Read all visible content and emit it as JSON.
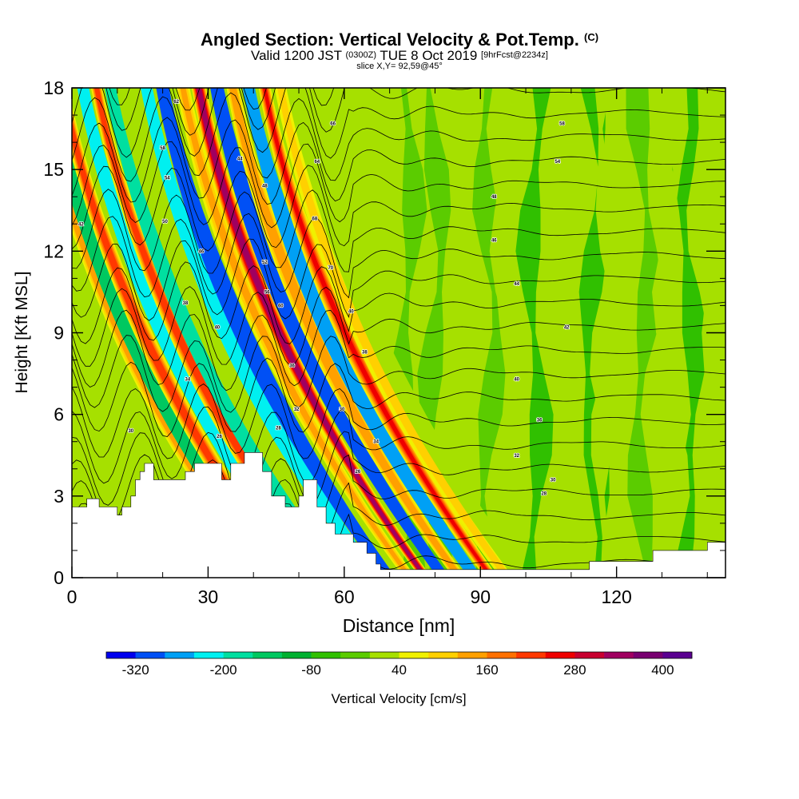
{
  "chart_data": {
    "type": "heatmap",
    "title": "Angled Section: Vertical Velocity & Pot.Temp.",
    "title_unit": "(C)",
    "subtitle": {
      "valid_prefix": "Valid 1200 JST",
      "utc": "(0300Z)",
      "date": "TUE 8 Oct 2019",
      "forecast": "[9hrFcst@2234z]"
    },
    "slice_label": "slice X,Y= 92,59@45°",
    "xlabel": "Distance [nm]",
    "ylabel": "Height [Kft MSL]",
    "xlim": [
      0,
      144
    ],
    "ylim": [
      0,
      18
    ],
    "x_ticks": [
      "0",
      "30",
      "60",
      "90",
      "120"
    ],
    "y_ticks": [
      "0",
      "3",
      "6",
      "9",
      "12",
      "15",
      "18"
    ],
    "colorbar": {
      "label": "Vertical Velocity [cm/s]",
      "tick_labels": [
        "-320",
        "-200",
        "-80",
        "40",
        "160",
        "280",
        "400"
      ],
      "min": -360,
      "max": 440,
      "step": 40,
      "colors": [
        "#0000ee",
        "#0050f5",
        "#00a0f5",
        "#00f0f0",
        "#00dfa0",
        "#00c860",
        "#00b030",
        "#30c000",
        "#5bcc00",
        "#a6e000",
        "#f0f000",
        "#ffd000",
        "#ffa000",
        "#ff7000",
        "#ff3800",
        "#ee0000",
        "#c80030",
        "#a00060",
        "#780070",
        "#5a0090"
      ]
    },
    "velocity_bands": [
      {
        "x": 8,
        "h": 6,
        "v": 130
      },
      {
        "x": 10,
        "h": 6,
        "v": -140
      },
      {
        "x": 13,
        "h": 7,
        "v": 210
      },
      {
        "x": 17.5,
        "h": 7,
        "v": -220
      },
      {
        "x": 20.5,
        "h": 6,
        "v": 230
      },
      {
        "x": 23.5,
        "h": 6,
        "v": -200
      },
      {
        "x": 27,
        "h": 6,
        "v": 30
      },
      {
        "x": 31.5,
        "h": 7,
        "v": -230
      },
      {
        "x": 35,
        "h": 9,
        "v": -290
      },
      {
        "x": 39.5,
        "h": 10,
        "v": 120
      },
      {
        "x": 43,
        "h": 11,
        "v": 330
      },
      {
        "x": 47,
        "h": 10,
        "v": -300
      },
      {
        "x": 50.5,
        "h": 9,
        "v": 150
      },
      {
        "x": 54,
        "h": 8,
        "v": -260
      },
      {
        "x": 57.5,
        "h": 8,
        "v": 240
      },
      {
        "x": 61,
        "h": 7,
        "v": 80
      },
      {
        "x": 64,
        "h": 6,
        "v": 10
      }
    ],
    "terrain_kft": [
      [
        0,
        2.6
      ],
      [
        3.3,
        2.6
      ],
      [
        3.3,
        2.9
      ],
      [
        6,
        2.9
      ],
      [
        6,
        2.6
      ],
      [
        10,
        2.6
      ],
      [
        10,
        2.3
      ],
      [
        11,
        2.3
      ],
      [
        11,
        2.6
      ],
      [
        13,
        2.6
      ],
      [
        13,
        3.0
      ],
      [
        14,
        3.0
      ],
      [
        14,
        3.6
      ],
      [
        15,
        3.6
      ],
      [
        15,
        3.9
      ],
      [
        16,
        3.9
      ],
      [
        16,
        4.2
      ],
      [
        18,
        4.2
      ],
      [
        18,
        3.6
      ],
      [
        25,
        3.6
      ],
      [
        25,
        3.9
      ],
      [
        27,
        3.9
      ],
      [
        27,
        4.2
      ],
      [
        33,
        4.2
      ],
      [
        33,
        3.6
      ],
      [
        35,
        3.6
      ],
      [
        35,
        4.2
      ],
      [
        38,
        4.2
      ],
      [
        38,
        4.6
      ],
      [
        42,
        4.6
      ],
      [
        42,
        3.9
      ],
      [
        44,
        3.9
      ],
      [
        44,
        3.0
      ],
      [
        47,
        3.0
      ],
      [
        47,
        2.6
      ],
      [
        50,
        2.6
      ],
      [
        50,
        3.0
      ],
      [
        51,
        3.0
      ],
      [
        51,
        3.6
      ],
      [
        54,
        3.6
      ],
      [
        54,
        2.6
      ],
      [
        56,
        2.6
      ],
      [
        56,
        2.0
      ],
      [
        58,
        2.0
      ],
      [
        58,
        1.6
      ],
      [
        62,
        1.6
      ],
      [
        62,
        1.3
      ],
      [
        65,
        1.3
      ],
      [
        65,
        0.9
      ],
      [
        67,
        0.9
      ],
      [
        67,
        0.5
      ],
      [
        68,
        0.5
      ],
      [
        68,
        0.3
      ],
      [
        114,
        0.3
      ],
      [
        114,
        0.6
      ],
      [
        128,
        0.6
      ],
      [
        128,
        1.0
      ],
      [
        140,
        1.0
      ],
      [
        140,
        1.3
      ],
      [
        144,
        1.3
      ]
    ],
    "theta_contours": {
      "top_kft": 18.8,
      "spacing_kft": 0.87,
      "count": 29,
      "labels": [
        {
          "x": 2,
          "h": 13.0,
          "text": "42"
        },
        {
          "x": 13,
          "h": 5.4,
          "text": "30"
        },
        {
          "x": 20,
          "h": 15.8,
          "text": "58"
        },
        {
          "x": 21,
          "h": 14.7,
          "text": "54"
        },
        {
          "x": 20.5,
          "h": 13.1,
          "text": "50"
        },
        {
          "x": 23,
          "h": 17.5,
          "text": "62"
        },
        {
          "x": 25.5,
          "h": 7.3,
          "text": "34"
        },
        {
          "x": 28.5,
          "h": 12.0,
          "text": "46"
        },
        {
          "x": 25,
          "h": 10.1,
          "text": "38"
        },
        {
          "x": 32,
          "h": 9.2,
          "text": "40"
        },
        {
          "x": 32.5,
          "h": 5.2,
          "text": "26"
        },
        {
          "x": 37,
          "h": 15.4,
          "text": "44"
        },
        {
          "x": 42.5,
          "h": 14.4,
          "text": "48"
        },
        {
          "x": 42.5,
          "h": 11.6,
          "text": "52"
        },
        {
          "x": 43,
          "h": 10.5,
          "text": "56"
        },
        {
          "x": 46,
          "h": 10.0,
          "text": "60"
        },
        {
          "x": 48.5,
          "h": 7.8,
          "text": "36"
        },
        {
          "x": 49.5,
          "h": 6.2,
          "text": "32"
        },
        {
          "x": 45.5,
          "h": 5.5,
          "text": "28"
        },
        {
          "x": 54,
          "h": 15.3,
          "text": "64"
        },
        {
          "x": 53.5,
          "h": 13.2,
          "text": "68"
        },
        {
          "x": 57,
          "h": 11.4,
          "text": "70"
        },
        {
          "x": 57.5,
          "h": 16.7,
          "text": "66"
        },
        {
          "x": 59.5,
          "h": 6.2,
          "text": "30"
        },
        {
          "x": 61.5,
          "h": 9.8,
          "text": "40"
        },
        {
          "x": 64.5,
          "h": 8.3,
          "text": "38"
        },
        {
          "x": 67,
          "h": 5.0,
          "text": "34"
        },
        {
          "x": 63,
          "h": 3.9,
          "text": "26"
        },
        {
          "x": 93,
          "h": 14.0,
          "text": "48"
        },
        {
          "x": 93,
          "h": 12.4,
          "text": "46"
        },
        {
          "x": 98,
          "h": 10.8,
          "text": "44"
        },
        {
          "x": 107,
          "h": 15.3,
          "text": "54"
        },
        {
          "x": 108,
          "h": 16.7,
          "text": "58"
        },
        {
          "x": 109,
          "h": 9.2,
          "text": "42"
        },
        {
          "x": 98,
          "h": 7.3,
          "text": "40"
        },
        {
          "x": 103,
          "h": 5.8,
          "text": "36"
        },
        {
          "x": 98,
          "h": 4.5,
          "text": "32"
        },
        {
          "x": 106,
          "h": 3.6,
          "text": "30"
        },
        {
          "x": 104,
          "h": 3.1,
          "text": "28"
        }
      ]
    }
  }
}
